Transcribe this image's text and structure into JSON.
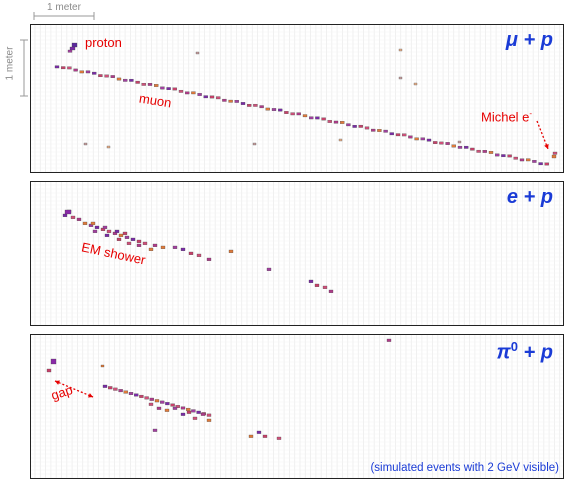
{
  "scale": {
    "horizontal_label": "1 meter",
    "vertical_label": "1 meter"
  },
  "panels": [
    {
      "id": "mu-p",
      "title_main": "μ + p",
      "labels": {
        "proton": "proton",
        "muon": "muon",
        "michel": "Michel e",
        "michel_sup": "-"
      },
      "color": {
        "track": "#7a2aa8",
        "hit": "#c8406a",
        "orange": "#e07a3a",
        "arrow": "#e60000"
      }
    },
    {
      "id": "e-p",
      "title_main": "e + p",
      "labels": {
        "shower": "EM shower"
      }
    },
    {
      "id": "pi0-p",
      "title_pre": "π",
      "title_sup": "0",
      "title_post": " + p",
      "labels": {
        "gap": "gap"
      },
      "footnote": "(simulated events with 2 GeV visible)"
    }
  ]
}
